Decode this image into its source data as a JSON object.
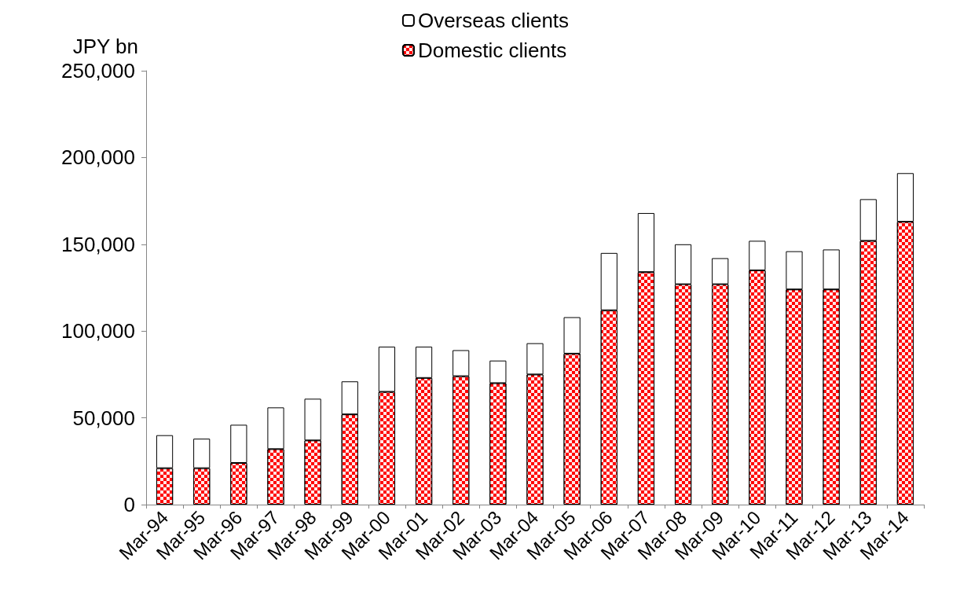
{
  "chart_data": {
    "type": "bar",
    "stacked": true,
    "ylabel": "JPY bn",
    "categories": [
      "Mar-94",
      "Mar-95",
      "Mar-96",
      "Mar-97",
      "Mar-98",
      "Mar-99",
      "Mar-00",
      "Mar-01",
      "Mar-02",
      "Mar-03",
      "Mar-04",
      "Mar-05",
      "Mar-06",
      "Mar-07",
      "Mar-08",
      "Mar-09",
      "Mar-10",
      "Mar-11",
      "Mar-12",
      "Mar-13",
      "Mar-14"
    ],
    "series": [
      {
        "name": "Domestic clients",
        "color": "#ff0000",
        "values": [
          21000,
          21000,
          24000,
          32000,
          37000,
          52000,
          65000,
          73000,
          74000,
          70000,
          75000,
          87000,
          112000,
          134000,
          127000,
          127000,
          135000,
          124000,
          124000,
          152000,
          163000
        ]
      },
      {
        "name": "Overseas clients",
        "color": "#ffffff",
        "values": [
          19000,
          17000,
          22000,
          24000,
          24000,
          19000,
          26000,
          18000,
          15000,
          13000,
          18000,
          21000,
          33000,
          34000,
          23000,
          15000,
          17000,
          22000,
          23000,
          24000,
          28000
        ]
      }
    ],
    "ylim": [
      0,
      250000
    ],
    "yticks": [
      0,
      {
        "value": 50000,
        "label": "50,000"
      },
      {
        "value": 100000,
        "label": "100,000"
      },
      {
        "value": 150000,
        "label": "150,000"
      },
      {
        "value": 200000,
        "label": "200,000"
      },
      {
        "value": 250000,
        "label": "250,000"
      }
    ],
    "grid": false,
    "legend": "top"
  }
}
